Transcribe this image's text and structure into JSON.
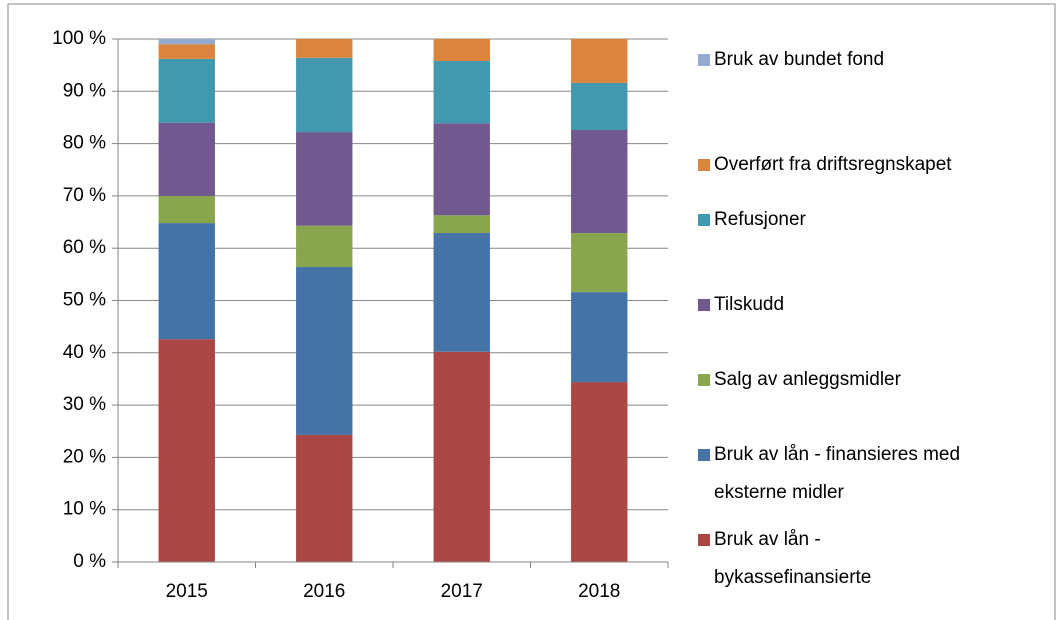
{
  "chart_data": {
    "type": "stacked_bar",
    "categories": [
      "2015",
      "2016",
      "2017",
      "2018"
    ],
    "series": [
      {
        "name": "Bruk av lån - bykassefinansierte",
        "color": "#aa4643",
        "values": [
          42.6,
          24.3,
          40.2,
          34.4
        ]
      },
      {
        "name": "Bruk av lån - finansieres med eksterne midler",
        "color": "#4572a7",
        "values": [
          22.2,
          32.1,
          22.7,
          17.2
        ]
      },
      {
        "name": "Salg av anleggsmidler",
        "color": "#89a54e",
        "values": [
          5.2,
          7.9,
          3.4,
          11.3
        ]
      },
      {
        "name": "Tilskudd",
        "color": "#71588f",
        "values": [
          14.0,
          17.9,
          17.6,
          19.7
        ]
      },
      {
        "name": "Refusjoner",
        "color": "#4198af",
        "values": [
          12.2,
          14.2,
          11.9,
          9.0
        ]
      },
      {
        "name": "Overført fra driftsregnskapet",
        "color": "#db843d",
        "values": [
          2.8,
          3.6,
          4.2,
          8.4
        ]
      },
      {
        "name": "Bruk av bundet fond",
        "color": "#93a9cf",
        "values": [
          1.0,
          0,
          0,
          0
        ]
      }
    ],
    "ylim": [
      0,
      100
    ],
    "yticks": [
      {
        "value": 0,
        "label": "0 %"
      },
      {
        "value": 10,
        "label": "10 %"
      },
      {
        "value": 20,
        "label": "20 %"
      },
      {
        "value": 30,
        "label": "30 %"
      },
      {
        "value": 40,
        "label": "40 %"
      },
      {
        "value": 50,
        "label": "50 %"
      },
      {
        "value": 60,
        "label": "60 %"
      },
      {
        "value": 70,
        "label": "70 %"
      },
      {
        "value": 80,
        "label": "80 %"
      },
      {
        "value": 90,
        "label": "90 %"
      },
      {
        "value": 100,
        "label": "100 %"
      }
    ],
    "grid": true,
    "legend": "right"
  }
}
